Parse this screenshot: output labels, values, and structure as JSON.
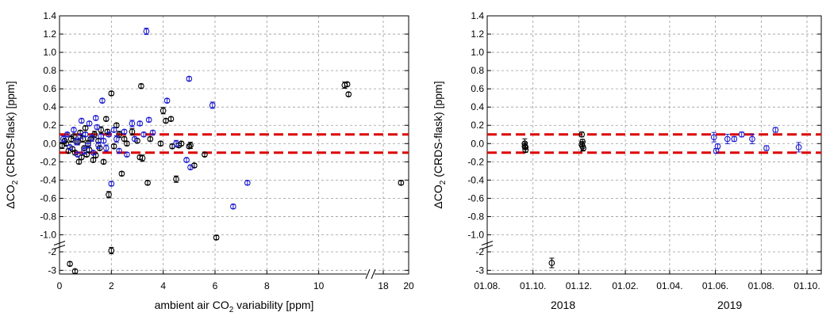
{
  "colors": {
    "black_series": "#000000",
    "blue_series": "#1f1fd0",
    "reference_lines": "#dd0000"
  },
  "chart_data": [
    {
      "type": "scatter",
      "ylabel_prefix": "ΔCO",
      "ylabel_sub": "2",
      "ylabel_suffix": " (CRDS-flask) [ppm]",
      "xlabel_prefix": "ambient air CO",
      "xlabel_sub": "2",
      "xlabel_suffix": " variability [ppm]",
      "x_ticks": [
        "0",
        "2",
        "4",
        "6",
        "8",
        "10",
        "18",
        "20"
      ],
      "y_ticks": [
        "1.4",
        "1.2",
        "1.0",
        "0.8",
        "0.6",
        "0.4",
        "0.2",
        "0.0",
        "-0.2",
        "-0.4",
        "-0.6",
        "-0.8",
        "-1.0",
        "-2",
        "-3"
      ],
      "xlim_segments": [
        [
          0,
          12
        ],
        [
          17,
          20
        ]
      ],
      "ylim_segments": [
        [
          -1.1,
          1.4
        ],
        [
          -3.2,
          -1.7
        ]
      ],
      "reference_lines": [
        0.1,
        -0.1
      ],
      "grid": true,
      "series": [
        {
          "color": "black",
          "points": [
            [
              0.1,
              -0.02
            ],
            [
              0.2,
              0.03
            ],
            [
              0.25,
              0.0
            ],
            [
              0.35,
              -0.08
            ],
            [
              0.45,
              0.05
            ],
            [
              0.5,
              -0.06
            ],
            [
              0.55,
              0.08
            ],
            [
              0.6,
              -0.1
            ],
            [
              0.7,
              0.02
            ],
            [
              0.75,
              -0.2
            ],
            [
              0.8,
              0.12
            ],
            [
              0.85,
              -0.15
            ],
            [
              0.9,
              0.05
            ],
            [
              0.95,
              -0.05
            ],
            [
              1.0,
              0.17
            ],
            [
              1.05,
              -0.12
            ],
            [
              1.1,
              0.0
            ],
            [
              1.15,
              -0.07
            ],
            [
              1.2,
              0.05
            ],
            [
              1.3,
              -0.18
            ],
            [
              1.35,
              0.1
            ],
            [
              1.4,
              -0.13
            ],
            [
              1.5,
              0.03
            ],
            [
              1.55,
              -0.05
            ],
            [
              1.6,
              0.15
            ],
            [
              1.7,
              -0.2
            ],
            [
              1.8,
              0.27
            ],
            [
              1.85,
              0.13
            ],
            [
              1.9,
              -0.56
            ],
            [
              2.0,
              0.55
            ],
            [
              2.1,
              -0.03
            ],
            [
              2.2,
              0.2
            ],
            [
              2.3,
              0.1
            ],
            [
              2.4,
              -0.33
            ],
            [
              2.5,
              0.05
            ],
            [
              2.6,
              0.0
            ],
            [
              2.8,
              0.13
            ],
            [
              3.0,
              0.03
            ],
            [
              3.1,
              -0.15
            ],
            [
              3.15,
              0.63
            ],
            [
              3.2,
              -0.16
            ],
            [
              3.4,
              -0.43
            ],
            [
              3.5,
              0.05
            ],
            [
              3.9,
              0.0
            ],
            [
              4.0,
              0.36
            ],
            [
              4.1,
              0.25
            ],
            [
              4.3,
              0.27
            ],
            [
              4.35,
              -0.03
            ],
            [
              4.5,
              -0.39
            ],
            [
              4.6,
              -0.02
            ],
            [
              4.7,
              0.0
            ],
            [
              5.0,
              -0.03
            ],
            [
              5.05,
              -0.02
            ],
            [
              5.2,
              -0.24
            ],
            [
              5.6,
              -0.12
            ],
            [
              6.05,
              -1.03
            ],
            [
              11.0,
              0.64
            ],
            [
              11.1,
              0.65
            ],
            [
              11.15,
              0.54
            ],
            [
              19.4,
              -0.43
            ],
            [
              2.0,
              -1.93
            ],
            [
              0.4,
              -2.65
            ],
            [
              0.6,
              -3.05
            ]
          ]
        },
        {
          "color": "blue",
          "points": [
            [
              0.15,
              0.05
            ],
            [
              0.3,
              0.1
            ],
            [
              0.4,
              -0.04
            ],
            [
              0.55,
              0.15
            ],
            [
              0.65,
              0.02
            ],
            [
              0.7,
              -0.12
            ],
            [
              0.8,
              0.08
            ],
            [
              0.85,
              0.25
            ],
            [
              0.95,
              -0.08
            ],
            [
              1.0,
              0.1
            ],
            [
              1.1,
              -0.02
            ],
            [
              1.15,
              0.22
            ],
            [
              1.25,
              0.06
            ],
            [
              1.3,
              -0.1
            ],
            [
              1.4,
              0.28
            ],
            [
              1.45,
              0.18
            ],
            [
              1.5,
              -0.02
            ],
            [
              1.6,
              0.08
            ],
            [
              1.65,
              0.47
            ],
            [
              1.7,
              0.03
            ],
            [
              1.8,
              -0.05
            ],
            [
              1.9,
              0.1
            ],
            [
              2.0,
              -0.44
            ],
            [
              2.1,
              0.15
            ],
            [
              2.2,
              0.05
            ],
            [
              2.3,
              -0.08
            ],
            [
              2.5,
              0.13
            ],
            [
              2.6,
              -0.12
            ],
            [
              2.8,
              0.22
            ],
            [
              2.9,
              0.05
            ],
            [
              3.1,
              0.22
            ],
            [
              3.25,
              0.1
            ],
            [
              3.35,
              1.23
            ],
            [
              3.45,
              0.26
            ],
            [
              3.6,
              0.12
            ],
            [
              4.15,
              0.47
            ],
            [
              4.5,
              0.0
            ],
            [
              4.9,
              -0.18
            ],
            [
              5.0,
              0.71
            ],
            [
              5.05,
              -0.26
            ],
            [
              5.9,
              0.42
            ],
            [
              6.7,
              -0.69
            ],
            [
              7.25,
              -0.43
            ]
          ]
        }
      ]
    },
    {
      "type": "scatter",
      "ylabel_prefix": "ΔCO",
      "ylabel_sub": "2",
      "ylabel_suffix": " (CRDS-flask) [ppm]",
      "x_ticks": [
        "01.08.",
        "01.10.",
        "01.12.",
        "01.02.",
        "01.04.",
        "01.06.",
        "01.08.",
        "01.10."
      ],
      "year_labels": [
        "2018",
        "2019"
      ],
      "y_ticks": [
        "1.4",
        "1.2",
        "1.0",
        "0.8",
        "0.6",
        "0.4",
        "0.2",
        "0.0",
        "-0.2",
        "-0.4",
        "-0.6",
        "-0.8",
        "-1.0",
        "-2",
        "-3"
      ],
      "xlim": [
        "2018-08-01",
        "2019-10-20"
      ],
      "ylim_segments": [
        [
          -1.1,
          1.4
        ],
        [
          -3.2,
          -1.7
        ]
      ],
      "reference_lines": [
        0.1,
        -0.1
      ],
      "grid": true,
      "series": [
        {
          "color": "black",
          "points": [
            [
              "2018-09-20",
              0.0
            ],
            [
              "2018-09-20",
              -0.03
            ],
            [
              "2018-09-21",
              -0.07
            ],
            [
              "2018-09-21",
              -0.04
            ],
            [
              "2018-12-05",
              0.1
            ],
            [
              "2018-12-05",
              -0.01
            ],
            [
              "2018-12-06",
              -0.03
            ],
            [
              "2018-12-06",
              0.02
            ],
            [
              "2018-12-07",
              -0.05
            ],
            [
              "2018-10-26",
              -2.6
            ]
          ]
        },
        {
          "color": "blue",
          "points": [
            [
              "2019-05-30",
              0.07
            ],
            [
              "2019-06-02",
              -0.08
            ],
            [
              "2019-06-04",
              -0.03
            ],
            [
              "2019-06-17",
              0.05
            ],
            [
              "2019-06-26",
              0.05
            ],
            [
              "2019-07-06",
              0.1
            ],
            [
              "2019-07-20",
              0.05
            ],
            [
              "2019-08-08",
              -0.05
            ],
            [
              "2019-08-20",
              0.15
            ],
            [
              "2019-09-20",
              -0.04
            ]
          ]
        }
      ]
    }
  ]
}
